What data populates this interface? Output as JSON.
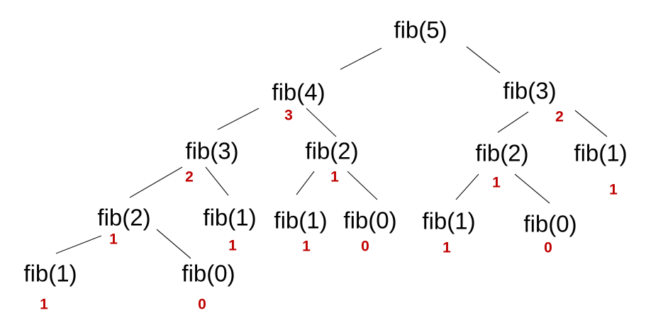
{
  "colors": {
    "node_text": "#000000",
    "value_text": "#c00000",
    "edge": "#1a1a1a"
  },
  "nodes": [
    {
      "id": "n5",
      "label": "fib(5)",
      "value": ""
    },
    {
      "id": "n4",
      "label": "fib(4)",
      "value": "3"
    },
    {
      "id": "n3a",
      "label": "fib(3)",
      "value": "2"
    },
    {
      "id": "n3b",
      "label": "fib(3)",
      "value": "2"
    },
    {
      "id": "n2a",
      "label": "fib(2)",
      "value": "1"
    },
    {
      "id": "n2b",
      "label": "fib(2)",
      "value": "1"
    },
    {
      "id": "n2c",
      "label": "fib(2)",
      "value": "1"
    },
    {
      "id": "n1a",
      "label": "fib(1)",
      "value": "1"
    },
    {
      "id": "n1b",
      "label": "fib(1)",
      "value": "1"
    },
    {
      "id": "n1c",
      "label": "fib(1)",
      "value": "1"
    },
    {
      "id": "n1d",
      "label": "fib(1)",
      "value": "1"
    },
    {
      "id": "n1e",
      "label": "fib(1)",
      "value": "1"
    },
    {
      "id": "n0a",
      "label": "fib(0)",
      "value": "0"
    },
    {
      "id": "n0b",
      "label": "fib(0)",
      "value": "0"
    },
    {
      "id": "n0c",
      "label": "fib(0)",
      "value": "0"
    }
  ],
  "edges": [
    [
      "n5",
      "n4"
    ],
    [
      "n5",
      "n3b"
    ],
    [
      "n4",
      "n3a"
    ],
    [
      "n4",
      "n2b"
    ],
    [
      "n3b",
      "n2c"
    ],
    [
      "n3b",
      "n1e"
    ],
    [
      "n3a",
      "n2a"
    ],
    [
      "n3a",
      "n1b"
    ],
    [
      "n2b",
      "n1c"
    ],
    [
      "n2b",
      "n0b"
    ],
    [
      "n2c",
      "n1d"
    ],
    [
      "n2c",
      "n0c"
    ],
    [
      "n2a",
      "n1a"
    ],
    [
      "n2a",
      "n0a"
    ]
  ]
}
